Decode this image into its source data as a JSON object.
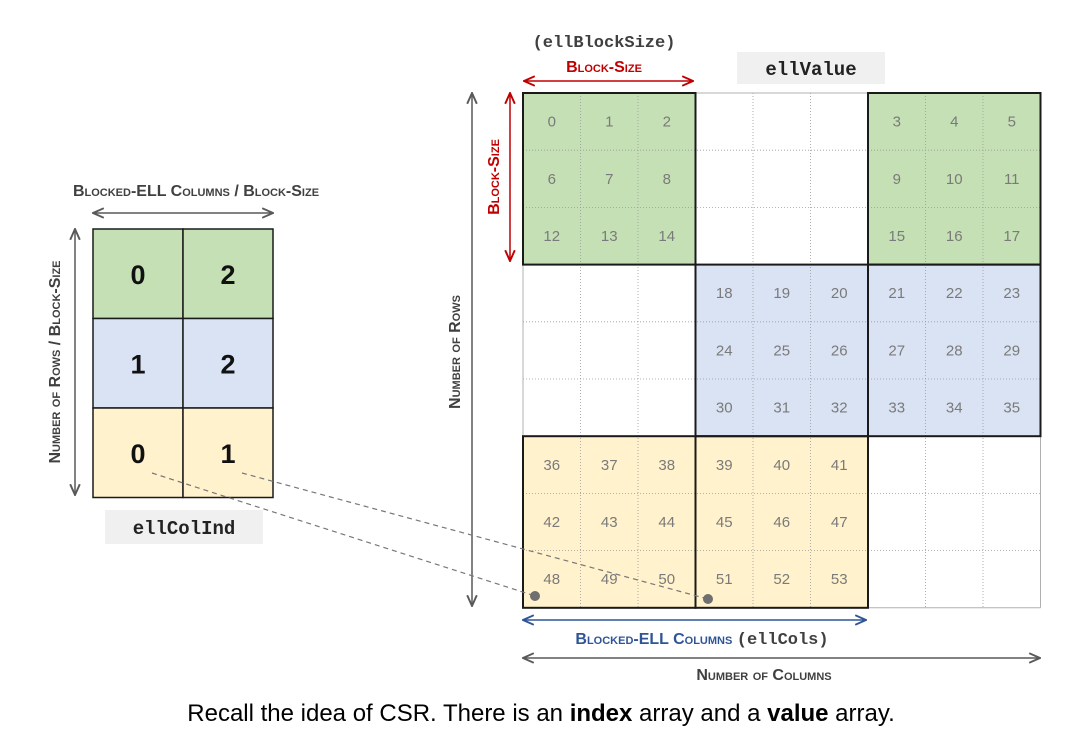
{
  "labels": {
    "ell_block_size": "(ellBlockSize)",
    "block_size_top": "Block-Size",
    "block_size_side": "Block-Size",
    "ell_value": "ellValue",
    "ell_col_ind": "ellColInd",
    "blocked_ell_columns_over_block_size": "Blocked-ELL Columns / Block-Size",
    "rows_over_block_size": "Number of Rows / Block-Size",
    "number_of_rows": "Number of Rows",
    "blocked_ell_columns": "Blocked-ELL Columns",
    "ell_cols": "(ellCols)",
    "number_of_columns": "Number of Columns"
  },
  "col_ind": {
    "rows": [
      [
        "0",
        "2"
      ],
      [
        "1",
        "2"
      ],
      [
        "0",
        "1"
      ]
    ],
    "row_colors": [
      "#c5e0b4",
      "#dae3f3",
      "#fff2cc"
    ]
  },
  "value_blocks": [
    {
      "block_row": 0,
      "block_col": 0,
      "color": "#c5e0b4",
      "values": [
        "0",
        "1",
        "2",
        "6",
        "7",
        "8",
        "12",
        "13",
        "14"
      ]
    },
    {
      "block_row": 0,
      "block_col": 2,
      "color": "#c5e0b4",
      "values": [
        "3",
        "4",
        "5",
        "9",
        "10",
        "11",
        "15",
        "16",
        "17"
      ]
    },
    {
      "block_row": 1,
      "block_col": 1,
      "color": "#dae3f3",
      "values": [
        "18",
        "19",
        "20",
        "24",
        "25",
        "26",
        "30",
        "31",
        "32"
      ]
    },
    {
      "block_row": 1,
      "block_col": 2,
      "color": "#dae3f3",
      "values": [
        "21",
        "22",
        "23",
        "27",
        "28",
        "29",
        "33",
        "34",
        "35"
      ]
    },
    {
      "block_row": 2,
      "block_col": 0,
      "color": "#fff2cc",
      "values": [
        "36",
        "37",
        "38",
        "42",
        "43",
        "44",
        "48",
        "49",
        "50"
      ]
    },
    {
      "block_row": 2,
      "block_col": 1,
      "color": "#fff2cc",
      "values": [
        "39",
        "40",
        "41",
        "45",
        "46",
        "47",
        "51",
        "52",
        "53"
      ]
    }
  ],
  "colors": {
    "red": "#c00000",
    "blue": "#2f5597",
    "dark": "#404040",
    "gray": "#595959"
  },
  "caption": {
    "part1": "Recall the idea of CSR. There is an ",
    "bold1": "index",
    "part2": " array and a ",
    "bold2": "value",
    "part3": " array."
  }
}
